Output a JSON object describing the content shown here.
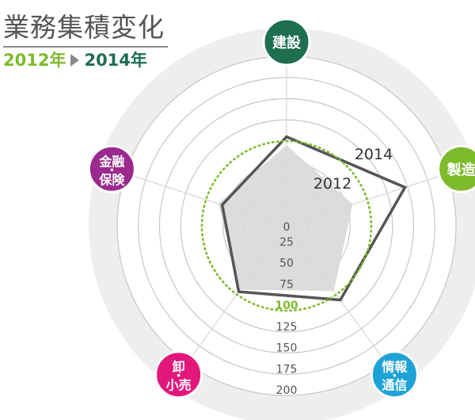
{
  "header": {
    "title": "業務集積変化",
    "period_from": "2012年",
    "period_to": "2014年"
  },
  "chart_data": {
    "type": "radar",
    "categories": [
      "建設",
      "製造",
      "情報\n通信",
      "卸\n小売",
      "金融\n保険"
    ],
    "category_colors": [
      "#1e6e50",
      "#7dbb2b",
      "#1fa3d6",
      "#e1177b",
      "#9a2a8e"
    ],
    "radial_ticks": [
      "0",
      "25",
      "50",
      "75",
      "100",
      "125",
      "150",
      "175",
      "200"
    ],
    "radial_range": [
      0,
      200
    ],
    "reference_value": 100,
    "highlight_tick": "100",
    "series": [
      {
        "name": "2012",
        "values": [
          95,
          82,
          95,
          93,
          85
        ],
        "style": "filled",
        "color": "#d8d8d8"
      },
      {
        "name": "2014",
        "values": [
          105,
          147,
          108,
          96,
          80
        ],
        "style": "outline",
        "color": "#555555"
      }
    ]
  },
  "colors": {
    "ring_outer": "#eeeeee",
    "ring_line": "#c6c6c6",
    "spoke": "#d6d6d6",
    "reference": "#7dbb2b",
    "tick_text": "#555555",
    "title": "#555555"
  }
}
